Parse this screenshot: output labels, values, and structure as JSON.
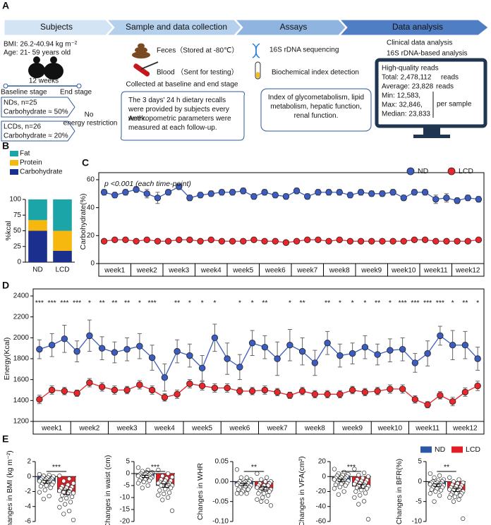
{
  "panel_labels": [
    "A",
    "B",
    "C",
    "D",
    "E"
  ],
  "diagram": {
    "steps": [
      "Subjects",
      "Sample and data collection",
      "Assays",
      "Data analysis"
    ],
    "subjects": {
      "bmi": "BMI: 26.2-40.94 kg m⁻²",
      "age": "Age: 21- 59 years old",
      "duration": "12 weeks",
      "baseline": "Baseline stage",
      "end": "End stage",
      "nd_group": [
        "NDs, n=25",
        "Carbohydrate ≈ 50%"
      ],
      "lcd_group": [
        "LCDs, n=26",
        "Carbohydrate ≈ 20%"
      ],
      "restriction": [
        "No",
        "energy restriction"
      ]
    },
    "collection": {
      "feces": "Feces（Stored at -80℃）",
      "blood": "Blood （Sent for testing）",
      "collected": "Collected at baseline and end stage",
      "recalls": [
        "The 3 days' 24 h dietary recalls were provided by subjects every week.",
        "Anthropometric parameters were measured at each follow-up."
      ]
    },
    "assays": {
      "sequencing": "16S rDNA sequencing",
      "biochemical": "Biochemical index detection",
      "index": "Index of glycometabolism, lipid metabolism, hepatic function, renal function."
    },
    "analysis": {
      "clinical": "Clinical data analysis",
      "rdna": "16S rDNA-based analysis",
      "reads_title": "High-quality reads",
      "total": "Total: 2,478,112",
      "total_unit": "reads",
      "average": "Average: 23,828",
      "average_unit": "reads",
      "min": "Min: 12,583,",
      "max": "Max: 32,846,",
      "median": "Median: 23,833",
      "per_sample": "per sample"
    }
  },
  "chart_data": [
    {
      "type": "bar",
      "stacked": true,
      "ylabel": "%kcal",
      "categories": [
        "ND",
        "LCD"
      ],
      "ylim": [
        0,
        100
      ],
      "yticks": [
        0,
        25,
        50,
        75,
        100
      ],
      "series": [
        {
          "name": "Fat",
          "color": "#1ba5a8",
          "values": [
            33,
            50
          ]
        },
        {
          "name": "Protein",
          "color": "#f6b80f",
          "values": [
            17,
            32
          ]
        },
        {
          "name": "Carbohydrate",
          "color": "#1b2f8e",
          "values": [
            50,
            18
          ]
        }
      ]
    },
    {
      "type": "line",
      "ylabel": "Carbohydrate(%)",
      "annotation": "p <0.001 (each time-point)",
      "ylim": [
        0,
        60
      ],
      "yticks": [
        0,
        20,
        40,
        60
      ],
      "categories": [
        null,
        "week1",
        null,
        null,
        "week2",
        null,
        null,
        "week3",
        null,
        null,
        "week4",
        null,
        null,
        "week5",
        null,
        null,
        "week6",
        null,
        null,
        "week7",
        null,
        null,
        "week8",
        null,
        null,
        "week9",
        null,
        null,
        "week10",
        null,
        null,
        "week11",
        null,
        null,
        "week12",
        null
      ],
      "series": [
        {
          "name": "ND",
          "color": "#3b5cc0",
          "values": [
            51,
            49,
            51,
            53,
            50,
            47,
            51,
            55,
            47,
            49,
            50,
            51,
            51,
            52,
            48,
            51,
            49,
            48,
            52,
            48,
            51,
            51,
            51,
            49,
            51,
            50,
            50,
            51,
            47,
            51,
            51,
            46,
            47,
            45,
            47,
            46
          ],
          "errors": [
            2,
            2,
            2,
            2,
            3,
            4,
            2,
            2,
            2,
            2,
            2,
            2,
            2,
            2,
            2,
            2,
            2,
            2,
            2,
            2,
            2,
            2,
            2,
            2,
            2,
            2,
            2,
            2,
            2,
            2,
            2,
            3,
            3,
            2,
            2,
            2
          ]
        },
        {
          "name": "LCD",
          "color": "#e8262b",
          "values": [
            16,
            17,
            17,
            16,
            17,
            16,
            16,
            17,
            17,
            16,
            17,
            16,
            16,
            16,
            17,
            16,
            16,
            15,
            16,
            17,
            17,
            16,
            17,
            16,
            16,
            16,
            16,
            16,
            16,
            17,
            17,
            16,
            16,
            16,
            16,
            17
          ],
          "errors": [
            1,
            1,
            1,
            1,
            1,
            1,
            1,
            1,
            1,
            1,
            1,
            1,
            1,
            1,
            1,
            1,
            1,
            1,
            1,
            1,
            1,
            1,
            1,
            1,
            1,
            1,
            1,
            1,
            1,
            1,
            1,
            1,
            1,
            1,
            1,
            1
          ]
        }
      ]
    },
    {
      "type": "line",
      "ylabel": "Energy(Kcal)",
      "ylim": [
        1200,
        2400
      ],
      "yticks": [
        1200,
        1400,
        1600,
        1800,
        2000,
        2200,
        2400
      ],
      "categories": [
        null,
        "week1",
        null,
        null,
        "week2",
        null,
        null,
        "week3",
        null,
        null,
        "week4",
        null,
        null,
        "week5",
        null,
        null,
        "week6",
        null,
        null,
        "week7",
        null,
        null,
        "week8",
        null,
        null,
        "week9",
        null,
        null,
        "week10",
        null,
        null,
        "week11",
        null,
        null,
        "week12",
        null
      ],
      "annotations": [
        "***",
        "***",
        "***",
        "***",
        "*",
        "**",
        "**",
        "**",
        "*",
        "***",
        null,
        "**",
        "*",
        "*",
        "*",
        null,
        "*",
        "*",
        "**",
        null,
        "*",
        "**",
        null,
        "**",
        "*",
        "*",
        "*",
        "**",
        "*",
        "***",
        "***",
        "***",
        "***",
        "*",
        "**",
        "*"
      ],
      "series": [
        {
          "color": "#3b5cc0",
          "values": [
            1890,
            1930,
            1990,
            1870,
            2020,
            1900,
            1860,
            1890,
            1920,
            1810,
            1620,
            1870,
            1830,
            1710,
            2000,
            1800,
            1720,
            1950,
            1910,
            1800,
            1930,
            1870,
            1760,
            1950,
            1830,
            1850,
            1910,
            1840,
            1880,
            1890,
            1760,
            1850,
            2020,
            1930,
            1930,
            1800
          ],
          "errors": [
            90,
            110,
            130,
            100,
            150,
            110,
            100,
            110,
            120,
            120,
            130,
            110,
            110,
            120,
            130,
            150,
            120,
            120,
            110,
            160,
            150,
            130,
            120,
            110,
            110,
            100,
            110,
            100,
            110,
            110,
            90,
            120,
            90,
            140,
            130,
            110
          ]
        },
        {
          "color": "#e8262b",
          "values": [
            1410,
            1500,
            1490,
            1470,
            1570,
            1530,
            1500,
            1500,
            1550,
            1500,
            1430,
            1460,
            1560,
            1540,
            1520,
            1520,
            1490,
            1490,
            1500,
            1480,
            1450,
            1490,
            1460,
            1460,
            1460,
            1500,
            1480,
            1490,
            1510,
            1510,
            1410,
            1360,
            1450,
            1390,
            1480,
            1540
          ],
          "errors": [
            40,
            40,
            35,
            30,
            40,
            40,
            40,
            35,
            40,
            40,
            35,
            40,
            40,
            40,
            40,
            40,
            35,
            35,
            40,
            35,
            30,
            35,
            35,
            35,
            35,
            35,
            35,
            35,
            40,
            40,
            35,
            30,
            35,
            40,
            40,
            45
          ]
        }
      ]
    },
    {
      "type": "bar",
      "ylabel": "Changes in BMI (kg m⁻²)",
      "ylim": [
        -6,
        2
      ],
      "yticks": [
        -6,
        -4,
        -2,
        0,
        2
      ],
      "significance": "***",
      "series": [
        {
          "color": "#2b57a6",
          "values": [
            -0.7
          ],
          "errors": [
            0.18
          ],
          "points": [
            0.3,
            0.2,
            0.1,
            0,
            -0.1,
            -0.2,
            -0.3,
            -0.3,
            -0.4,
            -0.5,
            -0.5,
            -0.6,
            -0.6,
            -0.7,
            -0.8,
            -0.9,
            -1.0,
            -1.1,
            -1.2,
            -1.3,
            -1.5,
            -1.8,
            -2.1,
            -2.6,
            -3.0
          ]
        },
        {
          "color": "#e31d25",
          "values": [
            -2.1
          ],
          "errors": [
            0.3
          ],
          "points": [
            0.1,
            -0.3,
            -0.6,
            -0.9,
            -1.1,
            -1.3,
            -1.4,
            -1.5,
            -1.6,
            -1.7,
            -1.8,
            -1.9,
            -2.0,
            -2.1,
            -2.2,
            -2.3,
            -2.5,
            -2.7,
            -2.9,
            -3.1,
            -3.4,
            -3.7,
            -4.1,
            -4.6,
            -5.0,
            -5.8
          ]
        }
      ]
    },
    {
      "type": "bar",
      "ylabel": "Changes in waist (cm)",
      "ylim": [
        -20,
        5
      ],
      "yticks": [
        -20,
        -15,
        -10,
        -5,
        0,
        5
      ],
      "significance": "***",
      "series": [
        {
          "color": "#2b57a6",
          "values": [
            -1.2
          ],
          "errors": [
            0.45
          ],
          "points": [
            2.5,
            1.5,
            1,
            0.5,
            0.5,
            0,
            0,
            -0.3,
            -0.5,
            -0.5,
            -0.8,
            -1,
            -1,
            -1.2,
            -1.5,
            -1.5,
            -2,
            -2,
            -2.5,
            -3,
            -3,
            -3.5,
            -4,
            -5,
            -6
          ]
        },
        {
          "color": "#e31d25",
          "values": [
            -5
          ],
          "errors": [
            0.75
          ],
          "points": [
            1.5,
            0,
            -1,
            -1.5,
            -2,
            -2.5,
            -3,
            -3,
            -3.5,
            -4,
            -4,
            -4,
            -4.5,
            -5,
            -5,
            -5.5,
            -5,
            -6,
            -6.5,
            -7,
            -8,
            -8.5,
            -9,
            -10,
            -11,
            -15.5
          ]
        }
      ]
    },
    {
      "type": "bar",
      "ylabel": "Changes in WHR",
      "ylim": [
        -0.1,
        0.05
      ],
      "yticks": [
        {
          "value": -0.1,
          "label": "-0.10"
        },
        {
          "value": -0.05,
          "label": "-0.05"
        },
        {
          "value": 0,
          "label": "0.00"
        },
        {
          "value": 0.05,
          "label": "0.05"
        }
      ],
      "significance": "**",
      "series": [
        {
          "color": "#2b57a6",
          "values": [
            -0.007
          ],
          "errors": [
            0.003
          ],
          "points": [
            0.03,
            0.01,
            0.01,
            0.005,
            0,
            0,
            0,
            -0.002,
            -0.005,
            -0.005,
            -0.005,
            -0.008,
            -0.01,
            -0.01,
            -0.01,
            -0.012,
            -0.015,
            -0.015,
            -0.02,
            -0.02,
            -0.02,
            -0.025,
            -0.03,
            -0.03,
            -0.03
          ]
        },
        {
          "color": "#e31d25",
          "values": [
            -0.017
          ],
          "errors": [
            0.004
          ],
          "points": [
            0.02,
            0.01,
            0.005,
            0,
            0,
            -0.005,
            -0.005,
            -0.01,
            -0.01,
            -0.01,
            -0.015,
            -0.015,
            -0.02,
            -0.02,
            -0.02,
            -0.02,
            -0.025,
            -0.025,
            -0.03,
            -0.03,
            -0.035,
            -0.04,
            -0.045,
            -0.05,
            -0.05,
            -0.06
          ]
        }
      ]
    },
    {
      "type": "bar",
      "ylabel": "Changes in VFA(cm²)",
      "ylim": [
        -60,
        20
      ],
      "yticks": [
        -60,
        -40,
        -20,
        0,
        20
      ],
      "significance": "***",
      "series": [
        {
          "color": "#2b57a6",
          "values": [
            -5
          ],
          "errors": [
            1.6
          ],
          "points": [
            10,
            6,
            4,
            3,
            2,
            1,
            0,
            -1,
            -2,
            -2,
            -3,
            -4,
            -4,
            -5,
            -6,
            -7,
            -8,
            -9,
            -10,
            -11,
            -12,
            -14,
            -16,
            -20,
            -24
          ]
        },
        {
          "color": "#e31d25",
          "values": [
            -13
          ],
          "errors": [
            2.6
          ],
          "points": [
            10,
            5,
            2,
            0,
            -2,
            -4,
            -5,
            -6,
            -7,
            -8,
            -9,
            -10,
            -11,
            -12,
            -13,
            -14,
            -15,
            -16,
            -18,
            -20,
            -22,
            -25,
            -28,
            -33,
            -37,
            -57
          ]
        }
      ]
    },
    {
      "type": "bar",
      "ylabel": "Changes in BFR(%)",
      "ylim": [
        -10,
        5
      ],
      "yticks": [
        -10,
        -5,
        0,
        5
      ],
      "significance": "**",
      "series": [
        {
          "name": "ND",
          "color": "#2b57a6",
          "values": [
            -0.9
          ],
          "errors": [
            0.32
          ],
          "points": [
            2,
            1.5,
            1,
            0.5,
            0.3,
            0,
            0,
            -0.2,
            -0.3,
            -0.5,
            -0.5,
            -0.7,
            -0.8,
            -1,
            -1,
            -1.2,
            -1.5,
            -1.5,
            -1.8,
            -2,
            -2.2,
            -2.5,
            -3,
            -3.5,
            -5
          ]
        },
        {
          "name": "LCD",
          "color": "#e31d25",
          "values": [
            -2.1
          ],
          "errors": [
            0.4
          ],
          "points": [
            1,
            0.5,
            0,
            -0.3,
            -0.5,
            -0.8,
            -1,
            -1.2,
            -1.5,
            -1.5,
            -1.8,
            -2,
            -2,
            -2.2,
            -2.5,
            -2.5,
            -2.8,
            -3,
            -3,
            -3.3,
            -3.5,
            -3.8,
            -4,
            -4.5,
            -5,
            -9.3
          ]
        }
      ]
    }
  ]
}
